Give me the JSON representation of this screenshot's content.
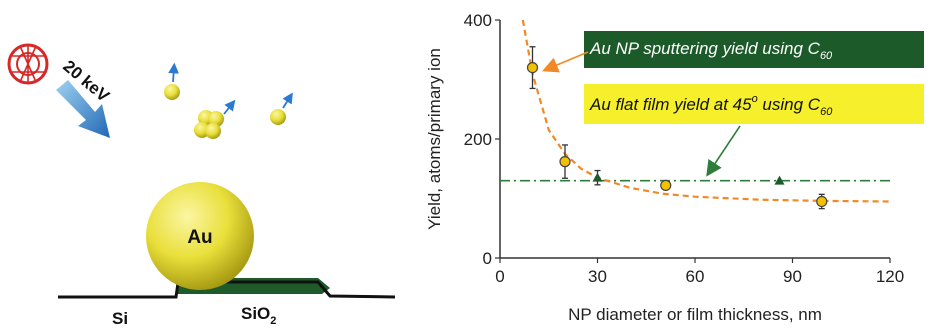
{
  "diagram": {
    "energy_label": "20 keV",
    "np_label": "Au",
    "si_label": "Si",
    "sio2_label": "SiO",
    "sio2_subscript": "2"
  },
  "chart_data": {
    "type": "scatter",
    "xlabel": "NP diameter or film thickness, nm",
    "ylabel": "Yield, atoms/primary ion",
    "xlim": [
      0,
      120
    ],
    "ylim": [
      0,
      400
    ],
    "xticks": [
      0,
      30,
      60,
      90,
      120
    ],
    "yticks": [
      0,
      200,
      400
    ],
    "grid": false,
    "series": [
      {
        "marker": "circle",
        "color": "#f2c200",
        "edge_color": "#444444",
        "x": [
          10,
          20,
          51,
          99
        ],
        "y": [
          320,
          162,
          122,
          95
        ],
        "err": [
          35,
          28,
          0,
          12
        ],
        "fit_color": "#f08a28",
        "fit_x": [
          7,
          10,
          15,
          20,
          25,
          30,
          40,
          50,
          60,
          80,
          100,
          120
        ],
        "fit_y": [
          400,
          310,
          215,
          175,
          150,
          135,
          118,
          108,
          103,
          98,
          96,
          95
        ]
      },
      {
        "marker": "triangle",
        "color": "#1e5b2c",
        "x": [
          30,
          86
        ],
        "y": [
          135,
          130
        ],
        "err": [
          12,
          0
        ],
        "reference_y": 130,
        "reference_color": "#2e7d3a"
      }
    ],
    "annotations": [
      {
        "text": "Au NP sputtering yield using C",
        "subscript": "60",
        "box_color": "#1d5a2a",
        "text_color": "#ffffff",
        "arrow_color": "#f08a28"
      },
      {
        "text": "Au flat film yield at 45",
        "superscript": "o",
        "text_after": " using C",
        "subscript": "60",
        "box_color": "#f5ef2c",
        "text_color": "#111111",
        "arrow_color": "#2e7d3a"
      }
    ]
  }
}
